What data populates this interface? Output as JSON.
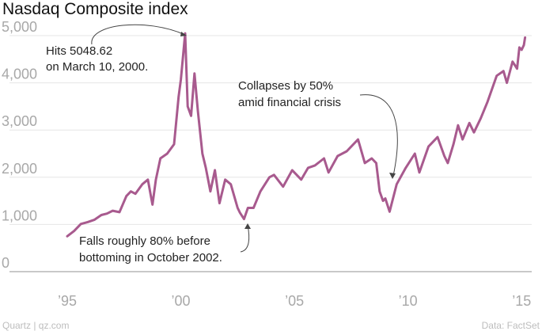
{
  "chart_data": {
    "type": "line",
    "title": "Nasdaq Composite index",
    "xlabel": "",
    "ylabel": "",
    "xlim": [
      1995.0,
      2015.2
    ],
    "ylim": [
      0,
      5300
    ],
    "x_ticks": [
      {
        "value": 1995,
        "label": "’95"
      },
      {
        "value": 2000,
        "label": "’00"
      },
      {
        "value": 2005,
        "label": "’05"
      },
      {
        "value": 2010,
        "label": "’10"
      },
      {
        "value": 2015,
        "label": "’15"
      }
    ],
    "y_ticks": [
      {
        "value": 0,
        "label": "0"
      },
      {
        "value": 1000,
        "label": "1,000"
      },
      {
        "value": 2000,
        "label": "2,000"
      },
      {
        "value": 3000,
        "label": "3,000"
      },
      {
        "value": 4000,
        "label": "4,000"
      },
      {
        "value": 5000,
        "label": "5,000"
      }
    ],
    "grid": true,
    "series": [
      {
        "name": "Nasdaq Composite",
        "color": "#a85a8e",
        "points": [
          [
            1995.0,
            750
          ],
          [
            1995.3,
            860
          ],
          [
            1995.6,
            1010
          ],
          [
            1995.9,
            1050
          ],
          [
            1996.2,
            1100
          ],
          [
            1996.5,
            1200
          ],
          [
            1996.75,
            1230
          ],
          [
            1997.0,
            1290
          ],
          [
            1997.3,
            1260
          ],
          [
            1997.6,
            1600
          ],
          [
            1997.8,
            1700
          ],
          [
            1998.0,
            1650
          ],
          [
            1998.3,
            1850
          ],
          [
            1998.55,
            1950
          ],
          [
            1998.75,
            1420
          ],
          [
            1998.9,
            1950
          ],
          [
            1999.1,
            2400
          ],
          [
            1999.4,
            2500
          ],
          [
            1999.7,
            2700
          ],
          [
            1999.9,
            3700
          ],
          [
            2000.0,
            4070
          ],
          [
            2000.19,
            5048.62
          ],
          [
            2000.3,
            3500
          ],
          [
            2000.45,
            3300
          ],
          [
            2000.6,
            4200
          ],
          [
            2000.75,
            3400
          ],
          [
            2000.95,
            2500
          ],
          [
            2001.1,
            2200
          ],
          [
            2001.3,
            1700
          ],
          [
            2001.5,
            2150
          ],
          [
            2001.7,
            1450
          ],
          [
            2001.95,
            1950
          ],
          [
            2002.2,
            1850
          ],
          [
            2002.5,
            1350
          ],
          [
            2002.6,
            1250
          ],
          [
            2002.78,
            1114
          ],
          [
            2002.95,
            1350
          ],
          [
            2003.2,
            1350
          ],
          [
            2003.5,
            1700
          ],
          [
            2003.9,
            2000
          ],
          [
            2004.1,
            2050
          ],
          [
            2004.5,
            1800
          ],
          [
            2004.9,
            2150
          ],
          [
            2005.3,
            1950
          ],
          [
            2005.6,
            2200
          ],
          [
            2005.9,
            2250
          ],
          [
            2006.3,
            2400
          ],
          [
            2006.5,
            2100
          ],
          [
            2006.9,
            2450
          ],
          [
            2007.3,
            2550
          ],
          [
            2007.8,
            2800
          ],
          [
            2008.1,
            2300
          ],
          [
            2008.4,
            2400
          ],
          [
            2008.6,
            2300
          ],
          [
            2008.75,
            1700
          ],
          [
            2008.9,
            1500
          ],
          [
            2009.0,
            1550
          ],
          [
            2009.19,
            1270
          ],
          [
            2009.5,
            1850
          ],
          [
            2009.9,
            2200
          ],
          [
            2010.3,
            2500
          ],
          [
            2010.5,
            2100
          ],
          [
            2010.9,
            2650
          ],
          [
            2011.3,
            2850
          ],
          [
            2011.6,
            2450
          ],
          [
            2011.75,
            2300
          ],
          [
            2012.0,
            2700
          ],
          [
            2012.2,
            3100
          ],
          [
            2012.4,
            2800
          ],
          [
            2012.7,
            3150
          ],
          [
            2012.9,
            2950
          ],
          [
            2013.2,
            3250
          ],
          [
            2013.5,
            3600
          ],
          [
            2013.9,
            4150
          ],
          [
            2014.2,
            4250
          ],
          [
            2014.35,
            4000
          ],
          [
            2014.6,
            4450
          ],
          [
            2014.8,
            4300
          ],
          [
            2014.9,
            4750
          ],
          [
            2015.0,
            4700
          ],
          [
            2015.1,
            4800
          ],
          [
            2015.15,
            4960
          ]
        ]
      }
    ],
    "annotations": [
      {
        "lines": [
          "Hits 5048.62",
          "on March 10, 2000."
        ],
        "x": 2000.19,
        "y": 5048.62
      },
      {
        "lines": [
          "Falls roughly 80% before",
          "bottoming in October 2002."
        ],
        "x": 2002.78,
        "y": 1114
      },
      {
        "lines": [
          "Collapses by 50%",
          "amid financial crisis"
        ],
        "x": 2008.9,
        "y": 1850
      }
    ]
  },
  "footer": {
    "source_left": "Quartz | qz.com",
    "source_right": "Data: FactSet"
  }
}
